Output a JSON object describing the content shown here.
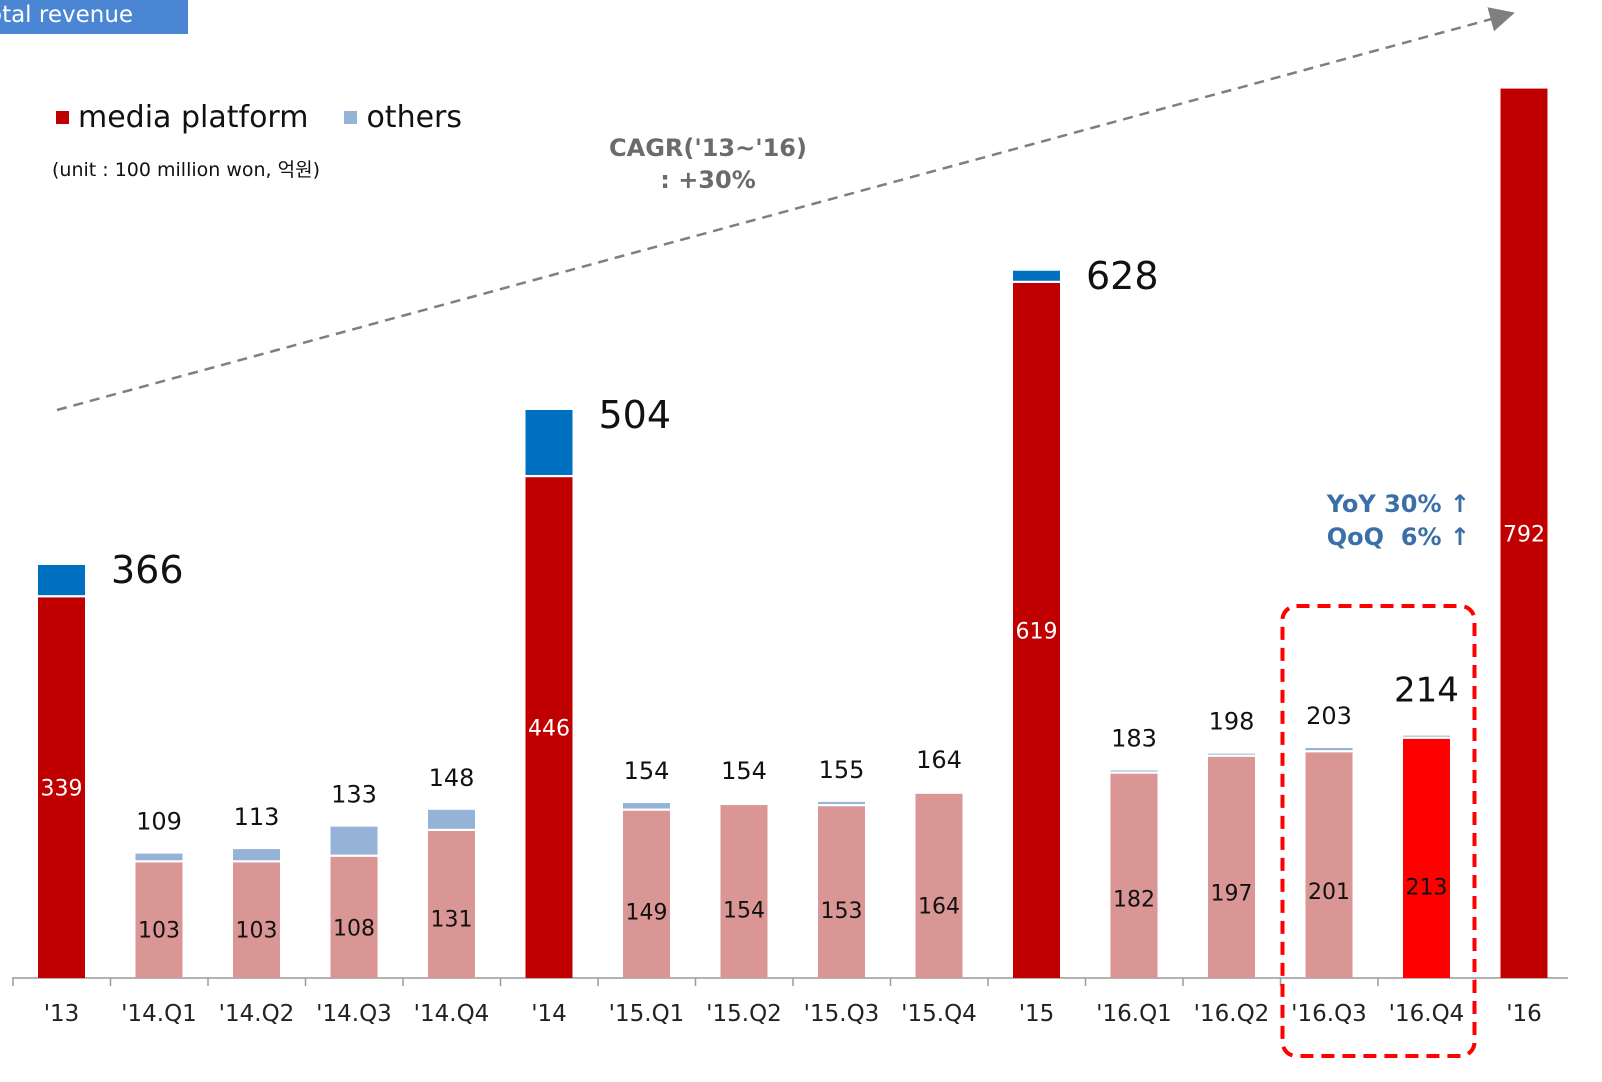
{
  "title": "otal revenue",
  "legend": [
    {
      "label": "media platform",
      "color": "#c00000"
    },
    {
      "label": "others",
      "color": "#93b3d7"
    }
  ],
  "unit_note": "(unit  : 100 million won, 억원)",
  "cagr": {
    "line1": "CAGR('13~'16)",
    "line2": ": +30%"
  },
  "growth": {
    "yoy": "YoY 30% ↑",
    "qoq": "QoQ  6% ↑"
  },
  "colors": {
    "annual_media": "#c00000",
    "annual_others": "#0070c0",
    "quarter_media": "#d99694",
    "quarter_others": "#95b3d7",
    "highlight": "#ff0000",
    "highlight_box": "#ff0000",
    "trend": "#7f7f7f"
  },
  "chart_data": {
    "type": "bar",
    "stacked": true,
    "categories": [
      "'13",
      "'14.Q1",
      "'14.Q2",
      "'14.Q3",
      "'14.Q4",
      "'14",
      "'15.Q1",
      "'15.Q2",
      "'15.Q3",
      "'15.Q4",
      "'15",
      "'16.Q1",
      "'16.Q2",
      "'16.Q3",
      "'16.Q4",
      "'16"
    ],
    "kind": [
      "annual",
      "quarter",
      "quarter",
      "quarter",
      "quarter",
      "annual",
      "quarter",
      "quarter",
      "quarter",
      "quarter",
      "annual",
      "quarter",
      "quarter",
      "quarter",
      "highlight",
      "annual"
    ],
    "series": [
      {
        "name": "media platform",
        "values": [
          339,
          103,
          103,
          108,
          131,
          446,
          149,
          154,
          153,
          164,
          619,
          182,
          197,
          201,
          213,
          792
        ]
      },
      {
        "name": "others",
        "values": [
          27,
          6,
          10,
          25,
          17,
          58,
          5,
          0,
          2,
          0,
          9,
          1,
          1,
          2,
          1,
          0
        ]
      }
    ],
    "totals": [
      366,
      109,
      113,
      133,
      148,
      504,
      154,
      154,
      155,
      164,
      628,
      183,
      198,
      203,
      214,
      null
    ],
    "media_labels": [
      "339",
      "103",
      "103",
      "108",
      "131",
      "446",
      "149",
      "154",
      "153",
      "164",
      "619",
      "182",
      "197",
      "201",
      "213",
      "792"
    ],
    "total_labels": [
      "366",
      "109",
      "113",
      "133",
      "148",
      "504",
      "154",
      "154",
      "155",
      "164",
      "628",
      "183",
      "198",
      "203",
      "214",
      ""
    ],
    "highlight_categories": [
      "'16.Q3",
      "'16.Q4"
    ]
  }
}
